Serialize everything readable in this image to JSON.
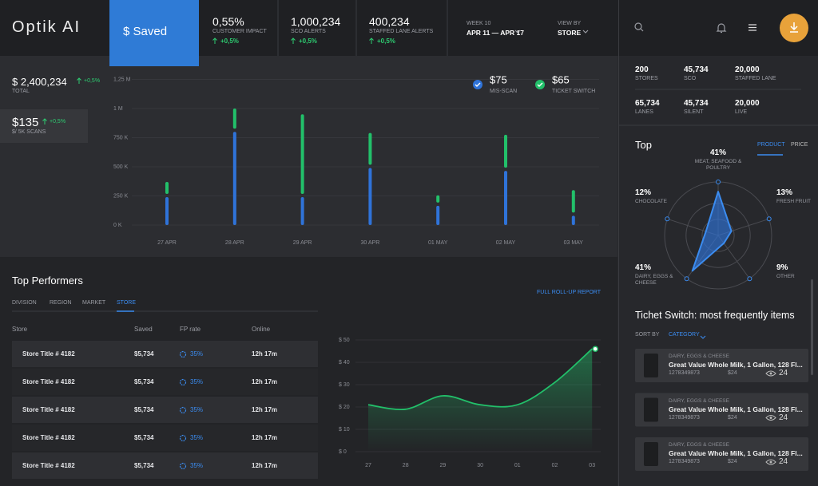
{
  "header": {
    "logo": "Optik AI",
    "saved_button": "$ Saved",
    "kpis": [
      {
        "value": "0,55%",
        "label": "CUSTOMER IMPACT",
        "change": "+0,5%"
      },
      {
        "value": "1,000,234",
        "label": "SCO ALERTS",
        "change": "+0,5%"
      },
      {
        "value": "400,234",
        "label": "STAFFED LANE ALERTS",
        "change": "+0,5%"
      }
    ],
    "week": {
      "label": "WEEK 10",
      "value": "APR 11 — APR 17"
    },
    "view_by": {
      "label": "VIEW BY",
      "value": "STORE"
    }
  },
  "summary": {
    "total": {
      "value": "$ 2,400,234",
      "label": "TOTAL",
      "change": "+0,5%"
    },
    "per_scan": {
      "value": "$135",
      "label": "$/ 5K SCANS",
      "change": "+0,5%"
    }
  },
  "savings_chart": {
    "type": "bar",
    "stacked": true,
    "categories": [
      "27 APR",
      "28 APR",
      "29 APR",
      "30 APR",
      "01 MAY",
      "02 MAY",
      "03 MAY"
    ],
    "series": [
      {
        "name": "MIS-SCAN",
        "total": "$75",
        "color": "#2f73d9",
        "values": [
          240000,
          800000,
          240000,
          490000,
          165000,
          465000,
          80000
        ]
      },
      {
        "name": "TICKET SWITCH",
        "total": "$65",
        "color": "#22c06a",
        "values": [
          130000,
          200000,
          710000,
          300000,
          90000,
          310000,
          220000
        ]
      }
    ],
    "ylim": [
      0,
      1250000
    ],
    "yticks": [
      {
        "value": 0,
        "label": "0 K"
      },
      {
        "value": 250000,
        "label": "250 K"
      },
      {
        "value": 500000,
        "label": "500 K"
      },
      {
        "value": 750000,
        "label": "750 K"
      },
      {
        "value": 1000000,
        "label": "1 M"
      },
      {
        "value": 1250000,
        "label": "1,25 M"
      }
    ],
    "grid": true
  },
  "store_stats": [
    {
      "value": "200",
      "label": "STORES"
    },
    {
      "value": "45,734",
      "label": "SCO"
    },
    {
      "value": "20,000",
      "label": "STAFFED LANE"
    },
    {
      "value": "65,734",
      "label": "LANES"
    },
    {
      "value": "45,734",
      "label": "SILENT"
    },
    {
      "value": "20,000",
      "label": "LIVE"
    }
  ],
  "top_chart": {
    "type": "radar",
    "title": "Top",
    "tabs": [
      "PRODUCT",
      "PRICE"
    ],
    "categories": [
      "MEAT, SEAFOOD & POULTRY",
      "FRESH FRUIT",
      "OTHER",
      "DAIRY, EGGS & CHEESE",
      "CHOCOLATE"
    ],
    "values": [
      41,
      13,
      9,
      41,
      12
    ],
    "value_labels": [
      "41%",
      "13%",
      "9%",
      "41%",
      "12%"
    ],
    "rlim": [
      0,
      50
    ],
    "color": "#2f73d9"
  },
  "top_performers": {
    "title": "Top Performers",
    "tabs": [
      "DIVISION",
      "REGION",
      "MARKET",
      "STORE"
    ],
    "link": "FULL ROLL-UP REPORT",
    "table": {
      "columns": [
        "Store",
        "Saved",
        "FP rate",
        "Online"
      ],
      "rows": [
        [
          "Store Title # 4182",
          "$5,734",
          "35%",
          "12h 17m"
        ],
        [
          "Store Title # 4182",
          "$5,734",
          "35%",
          "12h 17m"
        ],
        [
          "Store Title # 4182",
          "$5,734",
          "35%",
          "12h 17m"
        ],
        [
          "Store Title # 4182",
          "$5,734",
          "35%",
          "12h 17m"
        ],
        [
          "Store Title # 4182",
          "$5,734",
          "35%",
          "12h 17m"
        ]
      ]
    }
  },
  "trend_chart": {
    "type": "line",
    "categories": [
      "27",
      "28",
      "29",
      "30",
      "01",
      "02",
      "03"
    ],
    "values": [
      21,
      19,
      25,
      21,
      21,
      31,
      46
    ],
    "ylim": [
      0,
      50
    ],
    "yticks": [
      {
        "value": 0,
        "label": "$ 0"
      },
      {
        "value": 10,
        "label": "$ 10"
      },
      {
        "value": 20,
        "label": "$ 20"
      },
      {
        "value": 30,
        "label": "$ 30"
      },
      {
        "value": 40,
        "label": "$ 40"
      },
      {
        "value": 50,
        "label": "$ 50"
      }
    ],
    "color": "#22c06a",
    "grid": true
  },
  "ticket_switch": {
    "title": "Tichet Switch: most frequently items",
    "sort_label": "SORT BY",
    "sort_value": "CATEGORY",
    "items": [
      {
        "category": "DAIRY, EGGS & CHEESE",
        "name": "Great Value Whole Milk, 1 Gallon, 128 Fl...",
        "code": "1278349873",
        "price": "$24",
        "views": "24"
      },
      {
        "category": "DAIRY, EGGS & CHEESE",
        "name": "Great Value Whole Milk, 1 Gallon, 128 Fl...",
        "code": "1278349873",
        "price": "$24",
        "views": "24"
      },
      {
        "category": "DAIRY, EGGS & CHEESE",
        "name": "Great Value Whole Milk, 1 Gallon, 128 Fl...",
        "code": "1278349873",
        "price": "$24",
        "views": "24"
      }
    ]
  }
}
